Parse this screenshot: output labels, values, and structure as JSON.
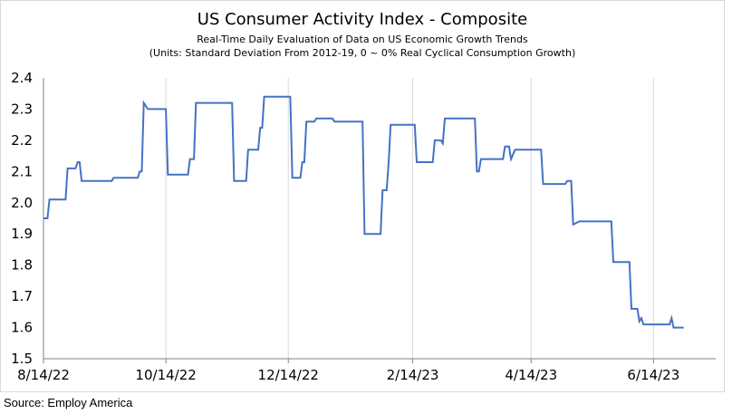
{
  "chart_data": {
    "type": "line",
    "title": "US Consumer Activity Index - Composite",
    "subtitle_lines": [
      "Real-Time Daily Evaluation of Data on US Economic Growth Trends",
      "(Units: Standard Deviation From 2012-19, 0 ~ 0% Real Cyclical Consumption Growth)"
    ],
    "xlabel": "",
    "ylabel": "",
    "ylim": [
      1.5,
      2.4
    ],
    "y_ticks": [
      "1.5",
      "1.6",
      "1.7",
      "1.8",
      "1.9",
      "2.0",
      "2.1",
      "2.2",
      "2.3",
      "2.4"
    ],
    "x_ticks": [
      {
        "label": "8/14/22",
        "date": "2022-08-14"
      },
      {
        "label": "10/14/22",
        "date": "2022-10-14"
      },
      {
        "label": "12/14/22",
        "date": "2022-12-14"
      },
      {
        "label": "2/14/23",
        "date": "2023-02-14"
      },
      {
        "label": "4/14/23",
        "date": "2023-04-14"
      },
      {
        "label": "6/14/23",
        "date": "2023-06-14"
      }
    ],
    "xlim": [
      "2022-08-14",
      "2023-07-15"
    ],
    "grid": {
      "vertical": true,
      "horizontal": false
    },
    "series": [
      {
        "color": "#4472c4",
        "points": [
          [
            "2022-08-14",
            1.95
          ],
          [
            "2022-08-16",
            1.95
          ],
          [
            "2022-08-17",
            2.01
          ],
          [
            "2022-08-25",
            2.01
          ],
          [
            "2022-08-26",
            2.11
          ],
          [
            "2022-08-30",
            2.11
          ],
          [
            "2022-08-31",
            2.13
          ],
          [
            "2022-09-01",
            2.13
          ],
          [
            "2022-09-02",
            2.07
          ],
          [
            "2022-09-17",
            2.07
          ],
          [
            "2022-09-18",
            2.08
          ],
          [
            "2022-09-30",
            2.08
          ],
          [
            "2022-10-01",
            2.1
          ],
          [
            "2022-10-02",
            2.1
          ],
          [
            "2022-10-03",
            2.32
          ],
          [
            "2022-10-05",
            2.3
          ],
          [
            "2022-10-14",
            2.3
          ],
          [
            "2022-10-15",
            2.09
          ],
          [
            "2022-10-25",
            2.09
          ],
          [
            "2022-10-26",
            2.14
          ],
          [
            "2022-10-28",
            2.14
          ],
          [
            "2022-10-29",
            2.32
          ],
          [
            "2022-11-16",
            2.32
          ],
          [
            "2022-11-17",
            2.07
          ],
          [
            "2022-11-23",
            2.07
          ],
          [
            "2022-11-24",
            2.17
          ],
          [
            "2022-11-29",
            2.17
          ],
          [
            "2022-11-30",
            2.24
          ],
          [
            "2022-12-01",
            2.24
          ],
          [
            "2022-12-02",
            2.34
          ],
          [
            "2022-12-15",
            2.34
          ],
          [
            "2022-12-16",
            2.08
          ],
          [
            "2022-12-20",
            2.08
          ],
          [
            "2022-12-21",
            2.13
          ],
          [
            "2022-12-22",
            2.13
          ],
          [
            "2022-12-23",
            2.26
          ],
          [
            "2022-12-27",
            2.26
          ],
          [
            "2022-12-28",
            2.27
          ],
          [
            "2023-01-05",
            2.27
          ],
          [
            "2023-01-06",
            2.26
          ],
          [
            "2023-01-20",
            2.26
          ],
          [
            "2023-01-21",
            1.9
          ],
          [
            "2023-01-29",
            1.9
          ],
          [
            "2023-01-30",
            2.04
          ],
          [
            "2023-02-01",
            2.04
          ],
          [
            "2023-02-02",
            2.13
          ],
          [
            "2023-02-03",
            2.25
          ],
          [
            "2023-02-15",
            2.25
          ],
          [
            "2023-02-16",
            2.13
          ],
          [
            "2023-02-24",
            2.13
          ],
          [
            "2023-02-25",
            2.2
          ],
          [
            "2023-02-28",
            2.2
          ],
          [
            "2023-03-01",
            2.19
          ],
          [
            "2023-03-02",
            2.27
          ],
          [
            "2023-03-17",
            2.27
          ],
          [
            "2023-03-18",
            2.1
          ],
          [
            "2023-03-19",
            2.1
          ],
          [
            "2023-03-20",
            2.14
          ],
          [
            "2023-03-31",
            2.14
          ],
          [
            "2023-04-01",
            2.18
          ],
          [
            "2023-04-03",
            2.18
          ],
          [
            "2023-04-04",
            2.14
          ],
          [
            "2023-04-06",
            2.17
          ],
          [
            "2023-04-19",
            2.17
          ],
          [
            "2023-04-20",
            2.06
          ],
          [
            "2023-05-01",
            2.06
          ],
          [
            "2023-05-02",
            2.07
          ],
          [
            "2023-05-04",
            2.07
          ],
          [
            "2023-05-05",
            1.93
          ],
          [
            "2023-05-08",
            1.94
          ],
          [
            "2023-05-24",
            1.94
          ],
          [
            "2023-05-25",
            1.81
          ],
          [
            "2023-06-02",
            1.81
          ],
          [
            "2023-06-03",
            1.66
          ],
          [
            "2023-06-06",
            1.66
          ],
          [
            "2023-06-07",
            1.62
          ],
          [
            "2023-06-08",
            1.63
          ],
          [
            "2023-06-09",
            1.61
          ],
          [
            "2023-06-22",
            1.61
          ],
          [
            "2023-06-23",
            1.63
          ],
          [
            "2023-06-24",
            1.6
          ],
          [
            "2023-06-29",
            1.6
          ]
        ]
      }
    ]
  },
  "source": "Source: Employ America"
}
